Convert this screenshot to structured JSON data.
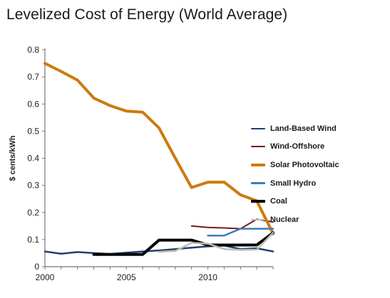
{
  "chart_data": {
    "type": "line",
    "title": "Levelized Cost of Energy (World Average)",
    "xlabel": "",
    "ylabel": "$ cents/kWh",
    "xlim": [
      2000,
      2014
    ],
    "ylim": [
      0,
      0.8
    ],
    "x_ticks": [
      "2000",
      "2005",
      "2010"
    ],
    "y_ticks": [
      "0",
      "0.1",
      "0.2",
      "0.3",
      "0.4",
      "0.5",
      "0.6",
      "0.7",
      "0.8"
    ],
    "grid": false,
    "legend_position": "right",
    "series": [
      {
        "name": "Land-Based Wind",
        "color": "#1f3f73",
        "width": 2.5,
        "x": [
          2000,
          2001,
          2002,
          2003,
          2004,
          2005,
          2006,
          2007,
          2008,
          2009,
          2010,
          2011,
          2012,
          2013,
          2014
        ],
        "values": [
          0.056,
          0.048,
          0.054,
          0.05,
          0.047,
          0.052,
          0.056,
          0.06,
          0.065,
          0.07,
          0.075,
          0.078,
          0.065,
          0.068,
          0.056
        ]
      },
      {
        "name": "Wind-Offshore",
        "color": "#7a1a1a",
        "width": 2,
        "x": [
          2009,
          2010,
          2011,
          2012,
          2013,
          2014
        ],
        "values": [
          0.15,
          0.145,
          0.143,
          0.14,
          0.175,
          0.165
        ]
      },
      {
        "name": "Solar Photovoltaic",
        "color": "#cc7a10",
        "width": 4,
        "x": [
          2000,
          2001,
          2002,
          2003,
          2004,
          2005,
          2006,
          2007,
          2008,
          2009,
          2010,
          2011,
          2012,
          2013,
          2014
        ],
        "values": [
          0.75,
          0.72,
          0.688,
          0.622,
          0.594,
          0.574,
          0.57,
          0.512,
          0.4,
          0.292,
          0.312,
          0.312,
          0.265,
          0.243,
          0.122
        ]
      },
      {
        "name": "Small Hydro",
        "color": "#3a7fb8",
        "width": 2.5,
        "x": [
          2010,
          2011,
          2012,
          2013,
          2014
        ],
        "values": [
          0.115,
          0.115,
          0.14,
          0.14,
          0.14
        ]
      },
      {
        "name": "Coal",
        "color": "#000000",
        "width": 4,
        "x": [
          2003,
          2004,
          2005,
          2006,
          2007,
          2008,
          2009,
          2010,
          2011,
          2012,
          2013,
          2014
        ],
        "values": [
          0.045,
          0.045,
          0.045,
          0.045,
          0.098,
          0.098,
          0.098,
          0.08,
          0.08,
          0.08,
          0.08,
          0.125
        ]
      },
      {
        "name": "Nuclear",
        "color": "#bdbdb2",
        "width": 2.5,
        "x": [
          2007,
          2008,
          2009,
          2010,
          2011,
          2012,
          2013,
          2014
        ],
        "values": [
          0.055,
          0.058,
          0.088,
          0.085,
          0.065,
          0.062,
          0.063,
          0.125
        ]
      }
    ]
  }
}
